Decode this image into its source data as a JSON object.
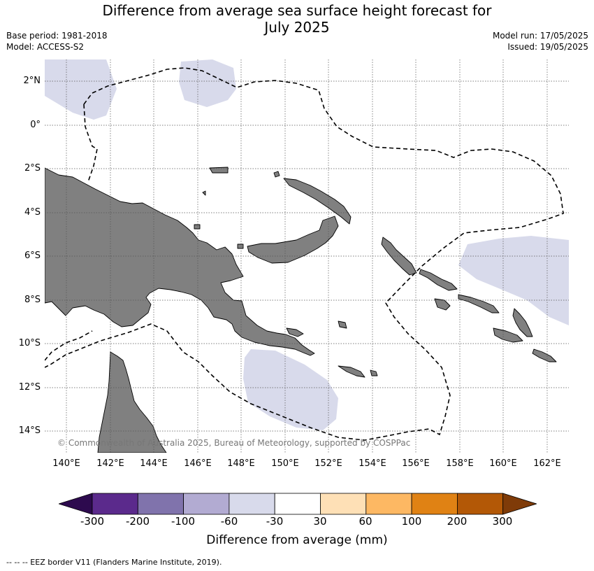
{
  "title": {
    "line1": "Difference from average sea surface height forecast for",
    "line2": "July 2025"
  },
  "meta": {
    "base_period": "Base period: 1981-2018",
    "model": "Model: ACCESS-S2",
    "model_run": "Model run: 17/05/2025",
    "issued": "Issued: 19/05/2025"
  },
  "axes": {
    "lat_ticks": [
      "2°N",
      "0°",
      "2°S",
      "4°S",
      "6°S",
      "8°S",
      "10°S",
      "12°S",
      "14°S"
    ],
    "lon_ticks": [
      "140°E",
      "142°E",
      "144°E",
      "146°E",
      "148°E",
      "150°E",
      "152°E",
      "154°E",
      "156°E",
      "158°E",
      "160°E",
      "162°E"
    ],
    "lon_range": [
      139,
      163
    ],
    "lat_range": [
      -15,
      3
    ]
  },
  "copyright": "© Commonwealth of Australia 2025, Bureau of Meteorology, supported by COSPPac",
  "colorbar": {
    "title": "Difference from average (mm)",
    "labels": [
      "-300",
      "-200",
      "-100",
      "-60",
      "-30",
      "30",
      "60",
      "100",
      "200",
      "300"
    ],
    "colors": [
      "#2d0a4e",
      "#5b2a8c",
      "#8073ac",
      "#b2abd2",
      "#d8daeb",
      "#ffffff",
      "#fee0b6",
      "#fdb863",
      "#e08214",
      "#b35806",
      "#7f3b08"
    ]
  },
  "colors": {
    "land": "#808080",
    "anomaly_light_purple": "#d8daeb",
    "eez_border": "#000000"
  },
  "footnote": "--  --  -- EEZ border V11 (Flanders Marine Institute, 2019)."
}
